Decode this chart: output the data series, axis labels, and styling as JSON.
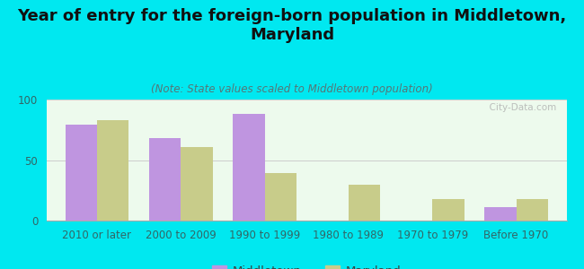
{
  "title": "Year of entry for the foreign-born population in Middletown,\nMaryland",
  "subtitle": "(Note: State values scaled to Middletown population)",
  "categories": [
    "2010 or later",
    "2000 to 2009",
    "1990 to 1999",
    "1980 to 1989",
    "1970 to 1979",
    "Before 1970"
  ],
  "middletown": [
    79,
    68,
    88,
    0,
    0,
    11
  ],
  "maryland": [
    83,
    61,
    39,
    30,
    18,
    18
  ],
  "middletown_color": "#bf95e0",
  "maryland_color": "#c8cc8a",
  "background_color": "#00e8f0",
  "plot_bg": "#edfaed",
  "ylim": [
    0,
    100
  ],
  "yticks": [
    0,
    50,
    100
  ],
  "bar_width": 0.38,
  "legend_middletown": "Middletown",
  "legend_maryland": "Maryland",
  "watermark": "  City-Data.com",
  "title_fontsize": 13,
  "subtitle_fontsize": 8.5,
  "tick_fontsize": 8.5,
  "legend_fontsize": 9.5
}
